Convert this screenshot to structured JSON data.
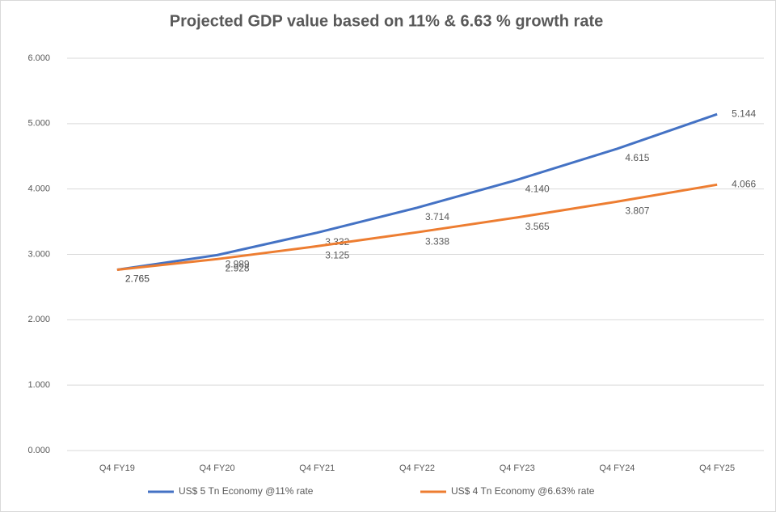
{
  "chart_data": {
    "type": "line",
    "title": "Projected GDP value  based on 11% & 6.63 % growth rate",
    "categories": [
      "Q4 FY19",
      "Q4 FY20",
      "Q4 FY21",
      "Q4 FY22",
      "Q4 FY23",
      "Q4 FY24",
      "Q4 FY25"
    ],
    "series": [
      {
        "name": "US$ 5 Tn Economy @11% rate",
        "color": "#4472c4",
        "values": [
          2.765,
          2.989,
          3.332,
          3.714,
          4.14,
          4.615,
          5.144
        ],
        "value_labels": [
          "2.765",
          "2.989",
          "3.332",
          "3.714",
          "4.140",
          "4.615",
          "5.144"
        ]
      },
      {
        "name": "US$ 4 Tn Economy @6.63% rate",
        "color": "#ed7d31",
        "values": [
          2.765,
          2.928,
          3.125,
          3.338,
          3.565,
          3.807,
          4.066
        ],
        "value_labels": [
          "2.765",
          "2.928",
          "3.125",
          "3.338",
          "3.565",
          "3.807",
          "4.066"
        ]
      }
    ],
    "ylim": [
      0,
      6
    ],
    "yticks": [
      {
        "value": 0,
        "label": "0.000"
      },
      {
        "value": 1,
        "label": "1.000"
      },
      {
        "value": 2,
        "label": "2.000"
      },
      {
        "value": 3,
        "label": "3.000"
      },
      {
        "value": 4,
        "label": "4.000"
      },
      {
        "value": 5,
        "label": "5.000"
      },
      {
        "value": 6,
        "label": "6.000"
      }
    ],
    "grid": true,
    "legend": "bottom"
  }
}
